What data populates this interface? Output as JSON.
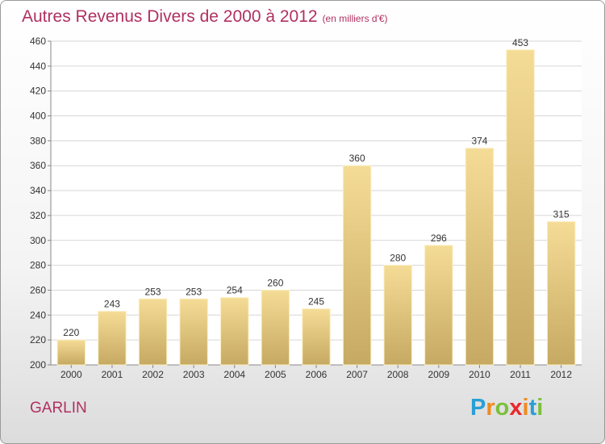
{
  "title": "Autres Revenus Divers de 2000 à 2012",
  "subtitle": "(en milliers d'€)",
  "location": "GARLIN",
  "logo": {
    "letters": [
      "P",
      "r",
      "o",
      "x",
      "i",
      "t",
      "i"
    ],
    "colors": [
      "#2a9fd6",
      "#f08a1c",
      "#7cbf3a",
      "#e8282b",
      "#f08a1c",
      "#2a9fd6",
      "#7cbf3a"
    ]
  },
  "colors": {
    "title": "#b03060",
    "bar_light": "#f5dc96",
    "bar_dark": "#c6a962"
  },
  "chart_data": {
    "type": "bar",
    "categories": [
      "2000",
      "2001",
      "2002",
      "2003",
      "2004",
      "2005",
      "2006",
      "2007",
      "2008",
      "2009",
      "2010",
      "2011",
      "2012"
    ],
    "values": [
      220,
      243,
      253,
      253,
      254,
      260,
      245,
      360,
      280,
      296,
      374,
      453,
      315
    ],
    "data_labels": [
      "220",
      "243",
      "253",
      "253",
      "254",
      "260",
      "245",
      "360",
      "280",
      "296",
      "374",
      "453",
      "315"
    ],
    "ylim": [
      200,
      460
    ],
    "yticks": [
      200,
      220,
      240,
      260,
      280,
      300,
      320,
      340,
      360,
      380,
      400,
      420,
      440,
      460
    ],
    "ytick_labels": [
      "200",
      "220",
      "240",
      "260",
      "280",
      "300",
      "320",
      "340",
      "360",
      "380",
      "400",
      "420",
      "440",
      "460"
    ],
    "grid": "horizontal",
    "xlabel": "",
    "ylabel": ""
  }
}
